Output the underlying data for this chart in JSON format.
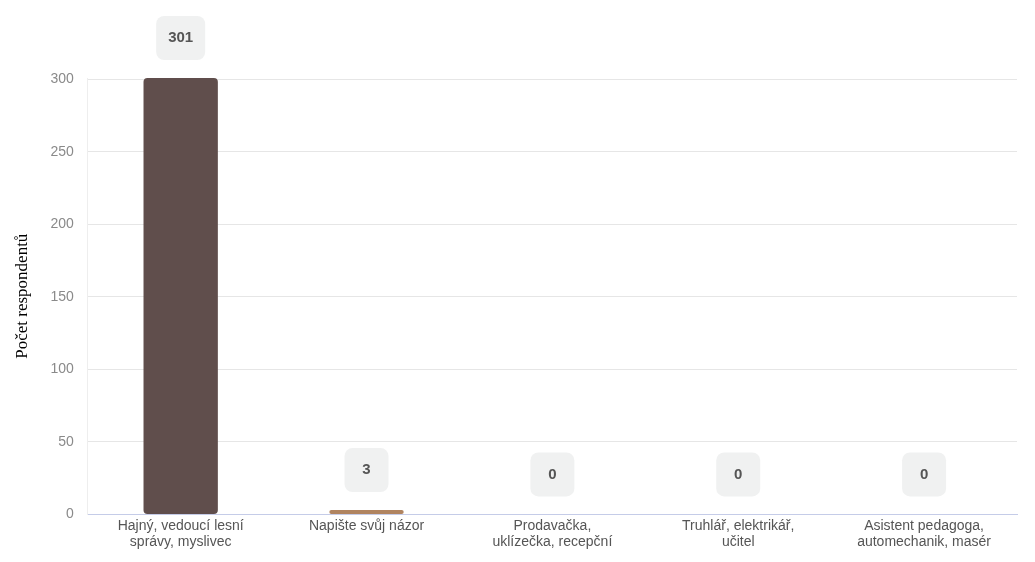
{
  "chart_data": {
    "type": "bar",
    "ylabel": "Počet respondentů",
    "categories": [
      "Hajný, vedoucí lesní správy, myslivec",
      "Napište svůj názor",
      "Prodavačka, uklízečka, recepční",
      "Truhlář, elektrikář, učitel",
      "Asistent pedagoga, automechanik, masér"
    ],
    "values": [
      301,
      3,
      0,
      0,
      0
    ],
    "colors": [
      "#604e4c",
      "#b08460",
      "#604e4c",
      "#604e4c",
      "#604e4c"
    ],
    "ylim": [
      0,
      301
    ],
    "yticks": [
      0,
      50,
      100,
      150,
      200,
      250,
      300
    ],
    "grid": "y",
    "legend": false,
    "data_labels": true
  }
}
